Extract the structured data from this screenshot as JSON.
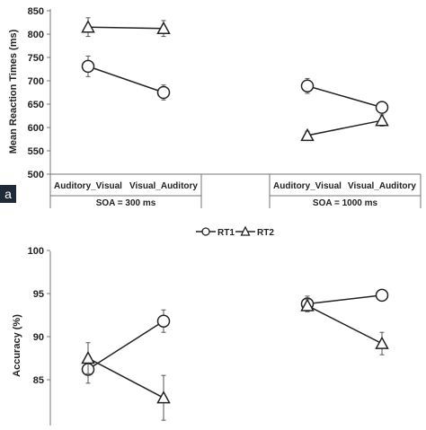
{
  "figure_label": "a",
  "legend": {
    "rt1": "RT1",
    "rt2": "RT2"
  },
  "chart_data": [
    {
      "type": "line",
      "panel": "top",
      "ylabel": "Mean Reaction Times (ms)",
      "ylim": [
        500,
        850
      ],
      "yticks": [
        500,
        550,
        600,
        650,
        700,
        750,
        800,
        850
      ],
      "categories": [
        "Auditory_Visual",
        "Visual_Auditory",
        "",
        "Auditory_Visual",
        "Visual_Auditory"
      ],
      "groups": [
        "SOA = 300 ms",
        "SOA = 1000 ms"
      ],
      "series": [
        {
          "name": "RT1",
          "marker": "circle",
          "values": [
            731,
            675,
            null,
            689,
            643
          ],
          "errors": [
            22,
            16,
            null,
            16,
            10
          ]
        },
        {
          "name": "RT2",
          "marker": "triangle",
          "values": [
            815,
            812,
            null,
            583,
            615
          ],
          "errors": [
            20,
            17,
            null,
            9,
            12
          ]
        }
      ]
    },
    {
      "type": "line",
      "panel": "bottom",
      "ylabel": "Accuracy (%)",
      "ylim": [
        83.5,
        100
      ],
      "yticks": [
        85,
        90,
        95,
        100
      ],
      "categories": [
        "Auditory_Visual",
        "Visual_Auditory",
        "",
        "Auditory_Visual",
        "Visual_Auditory"
      ],
      "series": [
        {
          "name": "RT1",
          "marker": "circle",
          "values": [
            86.2,
            91.8,
            null,
            93.8,
            94.8
          ],
          "errors": [
            1.6,
            1.3,
            null,
            0.9,
            0.4
          ]
        },
        {
          "name": "RT2",
          "marker": "triangle",
          "values": [
            87.5,
            82.9,
            null,
            93.6,
            89.2
          ],
          "errors": [
            1.8,
            2.6,
            null,
            0.7,
            1.3
          ]
        }
      ]
    }
  ]
}
